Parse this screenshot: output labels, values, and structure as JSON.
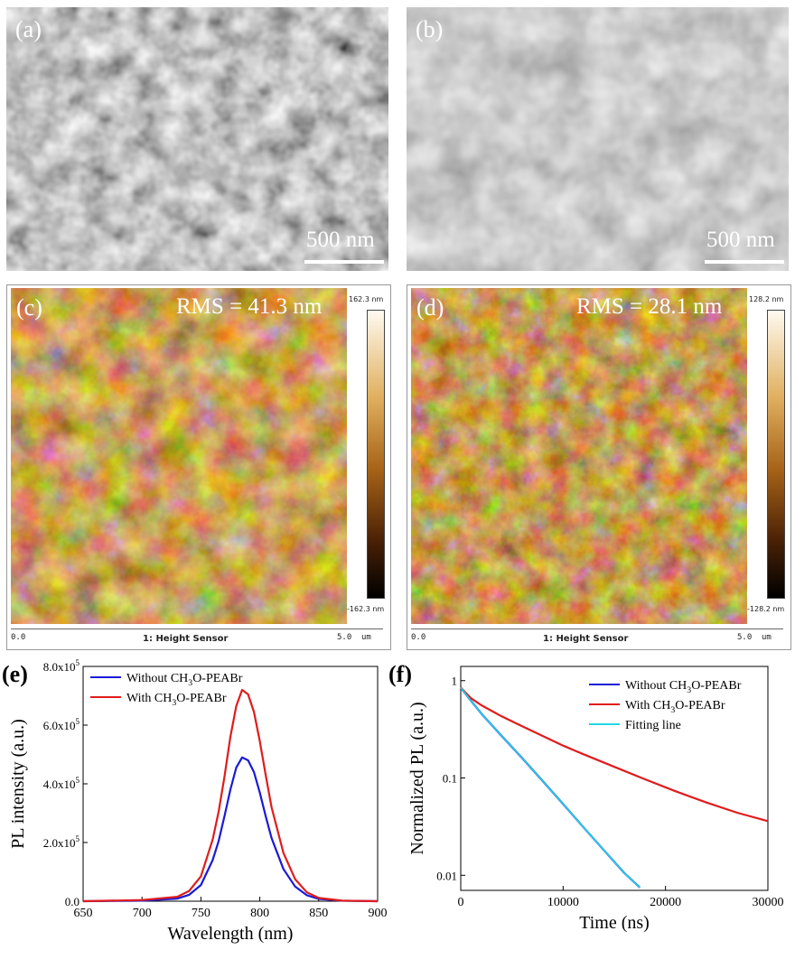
{
  "panels": {
    "a": {
      "label": "(a)",
      "scale_bar": "500 nm"
    },
    "b": {
      "label": "(b)",
      "scale_bar": "500 nm"
    },
    "c": {
      "label": "(c)",
      "rms": "RMS = 41.3 nm",
      "cbar_top": "162.3 nm",
      "cbar_bottom": "-162.3 nm",
      "axis_start": "0.0",
      "axis_end": "5.0",
      "axis_unit": "um",
      "caption": "1: Height Sensor"
    },
    "d": {
      "label": "(d)",
      "rms": "RMS = 28.1 nm",
      "cbar_top": "128.2 nm",
      "cbar_bottom": "-128.2 nm",
      "axis_start": "0.0",
      "axis_end": "5.0",
      "axis_unit": "um",
      "caption": "1: Height Sensor"
    },
    "e": {
      "label": "(e)"
    },
    "f": {
      "label": "(f)"
    }
  },
  "colors": {
    "without": "#1a1ad6",
    "with": "#e01c1c",
    "fit": "#22d8e8"
  },
  "chart_data": [
    {
      "type": "line",
      "panel": "e",
      "xlabel": "Wavelength (nm)",
      "ylabel": "PL intensity (a.u.)",
      "xlim": [
        650,
        900
      ],
      "ylim": [
        0,
        800000
      ],
      "xticks": [
        "650",
        "700",
        "750",
        "800",
        "850",
        "900"
      ],
      "yticks": [
        {
          "value": 0,
          "mantissa": "0.0",
          "exp": ""
        },
        {
          "value": 200000,
          "mantissa": "2.0x10",
          "exp": "5"
        },
        {
          "value": 400000,
          "mantissa": "4.0x10",
          "exp": "5"
        },
        {
          "value": 600000,
          "mantissa": "6.0x10",
          "exp": "5"
        },
        {
          "value": 800000,
          "mantissa": "8.0x10",
          "exp": "5"
        }
      ],
      "legend_position": "top-left",
      "series": [
        {
          "name": "Without CH3O-PEABr",
          "legend_parts": [
            "Without CH",
            "3",
            "O-PEABr"
          ],
          "color_key": "without",
          "x": [
            650,
            700,
            730,
            740,
            750,
            760,
            765,
            770,
            775,
            780,
            785,
            790,
            795,
            800,
            805,
            810,
            820,
            830,
            840,
            850,
            870,
            900
          ],
          "y": [
            0,
            2000,
            9000,
            22000,
            55000,
            140000,
            205000,
            290000,
            380000,
            455000,
            490000,
            480000,
            440000,
            370000,
            290000,
            215000,
            110000,
            50000,
            20000,
            8000,
            1500,
            0
          ]
        },
        {
          "name": "With CH3O-PEABr",
          "legend_parts": [
            "With CH",
            "3",
            "O-PEABr"
          ],
          "color_key": "with",
          "x": [
            650,
            700,
            730,
            740,
            750,
            760,
            765,
            770,
            775,
            780,
            785,
            790,
            795,
            800,
            805,
            810,
            820,
            830,
            840,
            850,
            870,
            900
          ],
          "y": [
            0,
            4000,
            15000,
            35000,
            85000,
            210000,
            305000,
            425000,
            560000,
            665000,
            720000,
            705000,
            645000,
            545000,
            430000,
            320000,
            165000,
            75000,
            30000,
            11000,
            2000,
            0
          ]
        }
      ]
    },
    {
      "type": "line",
      "panel": "f",
      "xlabel": "Time (ns)",
      "ylabel": "Normalized PL (a.u.)",
      "xlim": [
        0,
        30000
      ],
      "ylim": [
        0.007,
        1.4
      ],
      "yscale": "log",
      "xticks": [
        "0",
        "10000",
        "20000",
        "30000"
      ],
      "yticks": [
        {
          "value": 1,
          "text": "1"
        },
        {
          "value": 0.1,
          "text": "0.1"
        },
        {
          "value": 0.01,
          "text": "0.01"
        }
      ],
      "legend_position": "top-right",
      "series": [
        {
          "name": "Without CH3O-PEABr",
          "legend_parts": [
            "Without CH",
            "3",
            "O-PEABr"
          ],
          "color_key": "without",
          "x": [
            0,
            1000,
            2000,
            4000,
            6000,
            8000,
            10000,
            12000,
            14000,
            16000,
            17500
          ],
          "y": [
            0.85,
            0.62,
            0.46,
            0.27,
            0.16,
            0.093,
            0.054,
            0.031,
            0.018,
            0.0105,
            0.0075
          ]
        },
        {
          "name": "With CH3O-PEABr",
          "legend_parts": [
            "With CH",
            "3",
            "O-PEABr"
          ],
          "color_key": "with",
          "x": [
            0,
            1000,
            2000,
            4000,
            6000,
            8000,
            10000,
            12000,
            15000,
            18000,
            21000,
            24000,
            27000,
            30000
          ],
          "y": [
            0.85,
            0.66,
            0.56,
            0.43,
            0.34,
            0.27,
            0.215,
            0.175,
            0.13,
            0.097,
            0.073,
            0.056,
            0.044,
            0.036
          ]
        },
        {
          "name": "Fitting line",
          "legend_parts": [
            "Fitting line",
            "",
            ""
          ],
          "color_key": "fit",
          "x": [
            0,
            1000,
            2000,
            4000,
            6000,
            8000,
            10000,
            12000,
            14000,
            16000,
            17500
          ],
          "y": [
            0.85,
            0.62,
            0.46,
            0.27,
            0.16,
            0.093,
            0.054,
            0.031,
            0.018,
            0.0105,
            0.0075
          ]
        }
      ]
    }
  ]
}
